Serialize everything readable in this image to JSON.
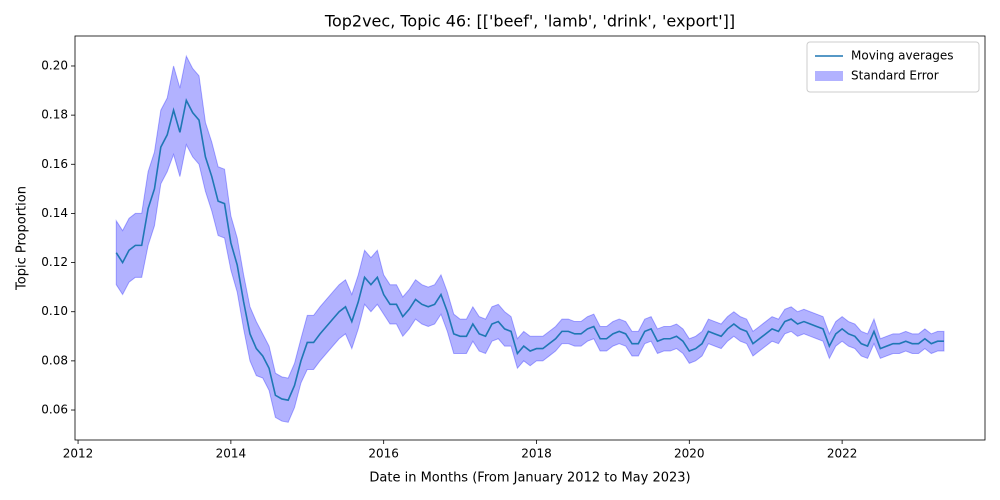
{
  "chart_data": {
    "type": "line",
    "title": "Top2vec, Topic 46: [['beef', 'lamb', 'drink', 'export']]",
    "x_label": "Date in Months (From January 2012 to May 2023)",
    "y_label": "Topic Proportion",
    "x": [
      2012.5,
      2012.583,
      2012.667,
      2012.75,
      2012.833,
      2012.917,
      2013,
      2013.083,
      2013.167,
      2013.25,
      2013.333,
      2013.417,
      2013.5,
      2013.583,
      2013.667,
      2013.75,
      2013.833,
      2013.917,
      2014,
      2014.083,
      2014.167,
      2014.25,
      2014.333,
      2014.417,
      2014.5,
      2014.583,
      2014.667,
      2014.75,
      2014.833,
      2014.917,
      2015,
      2015.083,
      2015.167,
      2015.25,
      2015.333,
      2015.417,
      2015.5,
      2015.583,
      2015.667,
      2015.75,
      2015.833,
      2015.917,
      2016,
      2016.083,
      2016.167,
      2016.25,
      2016.333,
      2016.417,
      2016.5,
      2016.583,
      2016.667,
      2016.75,
      2016.833,
      2016.917,
      2017,
      2017.083,
      2017.167,
      2017.25,
      2017.333,
      2017.417,
      2017.5,
      2017.583,
      2017.667,
      2017.75,
      2017.833,
      2017.917,
      2018,
      2018.083,
      2018.167,
      2018.25,
      2018.333,
      2018.417,
      2018.5,
      2018.583,
      2018.667,
      2018.75,
      2018.833,
      2018.917,
      2019,
      2019.083,
      2019.167,
      2019.25,
      2019.333,
      2019.417,
      2019.5,
      2019.583,
      2019.667,
      2019.75,
      2019.833,
      2019.917,
      2020,
      2020.083,
      2020.167,
      2020.25,
      2020.333,
      2020.417,
      2020.5,
      2020.583,
      2020.667,
      2020.75,
      2020.833,
      2020.917,
      2021,
      2021.083,
      2021.167,
      2021.25,
      2021.333,
      2021.417,
      2021.5,
      2021.583,
      2021.667,
      2021.75,
      2021.833,
      2021.917,
      2022,
      2022.083,
      2022.167,
      2022.25,
      2022.333,
      2022.417,
      2022.5,
      2022.583,
      2022.667,
      2022.75,
      2022.833,
      2022.917,
      2023,
      2023.083,
      2023.167,
      2023.25,
      2023.333
    ],
    "series": [
      {
        "name": "Moving averages",
        "color": "#1f77b4",
        "values": [
          0.124,
          0.12,
          0.125,
          0.127,
          0.127,
          0.142,
          0.15,
          0.167,
          0.172,
          0.182,
          0.173,
          0.186,
          0.181,
          0.178,
          0.163,
          0.155,
          0.145,
          0.144,
          0.128,
          0.119,
          0.104,
          0.091,
          0.085,
          0.082,
          0.077,
          0.066,
          0.0645,
          0.064,
          0.07,
          0.08,
          0.0875,
          0.0875,
          0.091,
          0.094,
          0.097,
          0.1,
          0.102,
          0.096,
          0.104,
          0.114,
          0.111,
          0.114,
          0.107,
          0.103,
          0.103,
          0.098,
          0.101,
          0.105,
          0.103,
          0.102,
          0.103,
          0.107,
          0.1,
          0.091,
          0.09,
          0.09,
          0.095,
          0.091,
          0.09,
          0.095,
          0.096,
          0.093,
          0.092,
          0.083,
          0.086,
          0.084,
          0.085,
          0.085,
          0.087,
          0.089,
          0.092,
          0.092,
          0.091,
          0.091,
          0.093,
          0.094,
          0.089,
          0.089,
          0.091,
          0.092,
          0.091,
          0.087,
          0.087,
          0.092,
          0.093,
          0.088,
          0.089,
          0.089,
          0.09,
          0.088,
          0.084,
          0.085,
          0.087,
          0.092,
          0.091,
          0.09,
          0.093,
          0.095,
          0.093,
          0.092,
          0.087,
          0.089,
          0.091,
          0.093,
          0.092,
          0.096,
          0.097,
          0.095,
          0.096,
          0.095,
          0.094,
          0.093,
          0.086,
          0.091,
          0.093,
          0.091,
          0.09,
          0.087,
          0.086,
          0.092,
          0.085,
          0.086,
          0.087,
          0.087,
          0.088,
          0.087,
          0.087,
          0.089,
          0.087,
          0.088,
          0.088
        ]
      },
      {
        "name": "Standard Error",
        "color": "#0000ff",
        "upper": [
          0.137,
          0.133,
          0.138,
          0.14,
          0.14,
          0.157,
          0.165,
          0.182,
          0.187,
          0.2,
          0.191,
          0.204,
          0.199,
          0.196,
          0.177,
          0.169,
          0.159,
          0.158,
          0.139,
          0.13,
          0.115,
          0.102,
          0.096,
          0.091,
          0.086,
          0.075,
          0.0735,
          0.073,
          0.079,
          0.089,
          0.0985,
          0.0985,
          0.102,
          0.105,
          0.108,
          0.111,
          0.113,
          0.107,
          0.115,
          0.125,
          0.122,
          0.125,
          0.115,
          0.111,
          0.111,
          0.106,
          0.109,
          0.113,
          0.111,
          0.11,
          0.111,
          0.115,
          0.108,
          0.099,
          0.097,
          0.097,
          0.102,
          0.098,
          0.097,
          0.102,
          0.103,
          0.1,
          0.098,
          0.089,
          0.092,
          0.09,
          0.09,
          0.09,
          0.092,
          0.094,
          0.097,
          0.097,
          0.096,
          0.096,
          0.098,
          0.099,
          0.094,
          0.094,
          0.096,
          0.097,
          0.096,
          0.092,
          0.092,
          0.097,
          0.098,
          0.093,
          0.094,
          0.094,
          0.095,
          0.093,
          0.089,
          0.09,
          0.092,
          0.097,
          0.096,
          0.095,
          0.098,
          0.1,
          0.098,
          0.097,
          0.092,
          0.094,
          0.096,
          0.098,
          0.097,
          0.101,
          0.102,
          0.1,
          0.101,
          0.1,
          0.099,
          0.098,
          0.091,
          0.096,
          0.098,
          0.096,
          0.095,
          0.092,
          0.091,
          0.097,
          0.089,
          0.09,
          0.091,
          0.091,
          0.092,
          0.091,
          0.091,
          0.093,
          0.091,
          0.092,
          0.092
        ],
        "lower": [
          0.111,
          0.107,
          0.112,
          0.114,
          0.114,
          0.127,
          0.135,
          0.152,
          0.157,
          0.164,
          0.155,
          0.168,
          0.163,
          0.16,
          0.149,
          0.141,
          0.131,
          0.13,
          0.117,
          0.108,
          0.093,
          0.08,
          0.074,
          0.073,
          0.068,
          0.057,
          0.0555,
          0.055,
          0.061,
          0.071,
          0.0765,
          0.0765,
          0.08,
          0.083,
          0.086,
          0.089,
          0.091,
          0.085,
          0.093,
          0.103,
          0.1,
          0.103,
          0.099,
          0.095,
          0.095,
          0.09,
          0.093,
          0.097,
          0.095,
          0.094,
          0.095,
          0.099,
          0.092,
          0.083,
          0.083,
          0.083,
          0.088,
          0.084,
          0.083,
          0.088,
          0.089,
          0.086,
          0.086,
          0.077,
          0.08,
          0.078,
          0.08,
          0.08,
          0.082,
          0.084,
          0.087,
          0.087,
          0.086,
          0.086,
          0.088,
          0.089,
          0.084,
          0.084,
          0.086,
          0.087,
          0.086,
          0.082,
          0.082,
          0.087,
          0.088,
          0.083,
          0.084,
          0.084,
          0.085,
          0.083,
          0.079,
          0.08,
          0.082,
          0.087,
          0.086,
          0.085,
          0.088,
          0.09,
          0.088,
          0.087,
          0.082,
          0.084,
          0.086,
          0.088,
          0.087,
          0.091,
          0.092,
          0.09,
          0.091,
          0.09,
          0.089,
          0.088,
          0.081,
          0.086,
          0.088,
          0.086,
          0.085,
          0.082,
          0.081,
          0.087,
          0.081,
          0.082,
          0.083,
          0.083,
          0.084,
          0.083,
          0.083,
          0.085,
          0.083,
          0.084,
          0.084
        ]
      }
    ],
    "xlim": [
      2011.96,
      2023.87
    ],
    "xticks": [
      2012,
      2014,
      2016,
      2018,
      2020,
      2022
    ],
    "ylim": [
      0.0478,
      0.2122
    ],
    "yticks": [
      0.06,
      0.08,
      {
        "value": 0.1,
        "label": "0.10"
      },
      0.12,
      0.14,
      0.16,
      0.18,
      {
        "value": 0.2,
        "label": "0.20"
      }
    ],
    "legend": "upper right"
  }
}
